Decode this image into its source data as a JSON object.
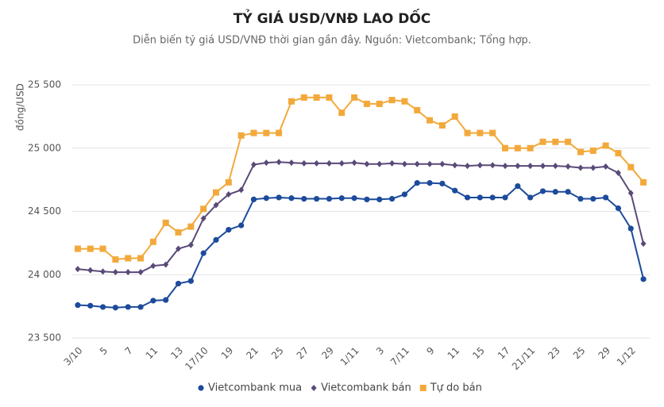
{
  "chart_data": {
    "type": "line",
    "title": "TỶ GIÁ USD/VNĐ LAO DỐC",
    "subtitle": "Diễn biến tỷ giá USD/VNĐ thời gian gần đây. Nguồn: Vietcombank; Tổng hợp.",
    "y_label": "đồng/USD",
    "categories": [
      "3/10",
      null,
      "5",
      null,
      "7",
      null,
      "11",
      null,
      "13",
      null,
      "17/10",
      null,
      "19",
      null,
      "21",
      null,
      "25",
      null,
      "27",
      null,
      "29",
      null,
      "1/11",
      null,
      "3",
      null,
      "7/11",
      null,
      "9",
      null,
      "11",
      null,
      "15",
      null,
      "17",
      null,
      "21/11",
      null,
      "23",
      null,
      "25",
      null,
      "29",
      null,
      "1/12",
      null
    ],
    "series": [
      {
        "name": "Vietcombank mua",
        "color": "#1d4b9b",
        "marker": "circle",
        "values": [
          23760,
          23755,
          23745,
          23740,
          23745,
          23745,
          23795,
          23800,
          23930,
          23950,
          24170,
          24275,
          24355,
          24390,
          24595,
          24605,
          24610,
          24605,
          24600,
          24600,
          24600,
          24605,
          24605,
          24595,
          24595,
          24600,
          24635,
          24725,
          24725,
          24720,
          24665,
          24610,
          24610,
          24610,
          24610,
          24700,
          24610,
          24660,
          24655,
          24655,
          24600,
          24600,
          24610,
          24525,
          24365,
          23965
        ]
      },
      {
        "name": "Vietcombank bán",
        "color": "#5a4a78",
        "marker": "diamond",
        "values": [
          24045,
          24035,
          24025,
          24020,
          24020,
          24020,
          24070,
          24080,
          24205,
          24235,
          24445,
          24550,
          24635,
          24670,
          24870,
          24885,
          24890,
          24885,
          24880,
          24880,
          24880,
          24880,
          24885,
          24875,
          24875,
          24880,
          24875,
          24875,
          24875,
          24875,
          24865,
          24860,
          24865,
          24865,
          24860,
          24860,
          24860,
          24860,
          24860,
          24855,
          24845,
          24845,
          24855,
          24805,
          24645,
          24245
        ]
      },
      {
        "name": "Tự do bán",
        "color": "#f2a93b",
        "marker": "square",
        "values": [
          24205,
          24205,
          24205,
          24120,
          24130,
          24130,
          24260,
          24410,
          24335,
          24380,
          24520,
          24650,
          24730,
          25100,
          25120,
          25120,
          25120,
          25370,
          25400,
          25400,
          25400,
          25280,
          25400,
          25350,
          25350,
          25380,
          25370,
          25300,
          25220,
          25180,
          25250,
          25120,
          25120,
          25120,
          25000,
          25000,
          25000,
          25050,
          25050,
          25050,
          24970,
          24980,
          25020,
          24960,
          24850,
          24730
        ]
      }
    ],
    "ylim": [
      23500,
      25500
    ],
    "yticks": [
      {
        "value": 23500,
        "label": "23 500"
      },
      {
        "value": 24000,
        "label": "24 000"
      },
      {
        "value": 24500,
        "label": "24 500"
      },
      {
        "value": 25000,
        "label": "25 000"
      },
      {
        "value": 25500,
        "label": "25 500"
      }
    ],
    "grid": true
  }
}
